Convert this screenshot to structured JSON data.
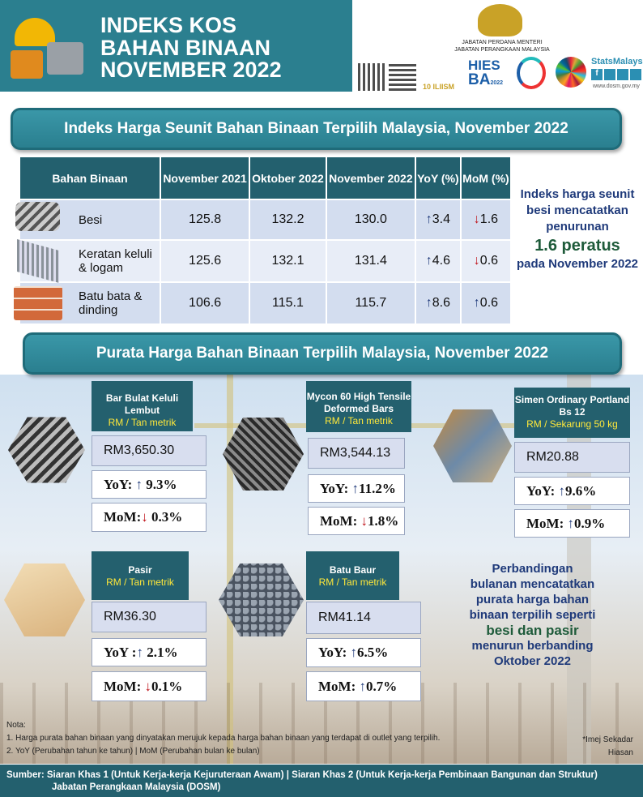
{
  "header": {
    "title_lines": [
      "INDEKS KOS",
      "BAHAN BINAAN",
      "NOVEMBER 2022"
    ]
  },
  "logos": {
    "agency_line1": "JABATAN PERDANA MENTERI",
    "agency_line2": "JABATAN PERANGKAAN MALAYSIA",
    "stats_brand": "StatsMalaysia",
    "website": "www.dosm.gov.my",
    "hies_top": "HIES",
    "hies_bottom": "BA",
    "hies_year": "2022",
    "anniv": "10 ILIISM"
  },
  "section1": {
    "title": "Indeks Harga Seunit Bahan Binaan Terpilih Malaysia, November 2022"
  },
  "index_table": {
    "headers": [
      "Bahan Binaan",
      "November 2021",
      "Oktober 2022",
      "November 2022",
      "YoY (%)",
      "MoM (%)"
    ],
    "rows": [
      {
        "name": "Besi",
        "nov2021": "125.8",
        "oct2022": "132.2",
        "nov2022": "130.0",
        "yoy": "3.4",
        "yoy_dir": "up",
        "mom": "1.6",
        "mom_dir": "down"
      },
      {
        "name": "Keratan keluli & logam",
        "nov2021": "125.6",
        "oct2022": "132.1",
        "nov2022": "131.4",
        "yoy": "4.6",
        "yoy_dir": "up",
        "mom": "0.6",
        "mom_dir": "down"
      },
      {
        "name": "Batu bata & dinding",
        "nov2021": "106.6",
        "oct2022": "115.1",
        "nov2022": "115.7",
        "yoy": "8.6",
        "yoy_dir": "up",
        "mom": "0.6",
        "mom_dir": "up"
      }
    ]
  },
  "side_note1": {
    "line1": "Indeks harga seunit",
    "line2": "besi mencatatkan",
    "line3": "penurunan",
    "highlight": "1.6 peratus",
    "line4": "pada November 2022"
  },
  "section2": {
    "title": "Purata Harga Bahan Binaan Terpilih Malaysia, November 2022"
  },
  "cards": [
    {
      "title": "Bar Bulat Keluli Lembut",
      "unit": "RM / Tan metrik",
      "price": "RM3,650.30",
      "yoy_label": "YoY:",
      "yoy": "9.3%",
      "yoy_dir": "up",
      "mom_label": "MoM:",
      "mom": "0.3%",
      "mom_dir": "down"
    },
    {
      "title": "Mycon 60 High Tensile Deformed Bars",
      "unit": "RM / Tan metrik",
      "price": "RM3,544.13",
      "yoy_label": "YoY:",
      "yoy": "11.2%",
      "yoy_dir": "up",
      "mom_label": "MoM:",
      "mom": "1.8%",
      "mom_dir": "down"
    },
    {
      "title": "Simen Ordinary Portland Bs 12",
      "unit": "RM / Sekarung 50 kg",
      "price": "RM20.88",
      "yoy_label": "YoY:",
      "yoy": "9.6%",
      "yoy_dir": "up",
      "mom_label": "MoM:",
      "mom": "0.9%",
      "mom_dir": "up"
    },
    {
      "title": "Pasir",
      "unit": "RM / Tan metrik",
      "price": "RM36.30",
      "yoy_label": "YoY :",
      "yoy": "2.1%",
      "yoy_dir": "up",
      "mom_label": "MoM:",
      "mom": "0.1%",
      "mom_dir": "down"
    },
    {
      "title": "Batu Baur",
      "unit": "RM / Tan metrik",
      "price": "RM41.14",
      "yoy_label": "YoY:",
      "yoy": "6.5%",
      "yoy_dir": "up",
      "mom_label": "MoM:",
      "mom": "0.7%",
      "mom_dir": "up"
    }
  ],
  "side_note2": {
    "line1": "Perbandingan",
    "line2": "bulanan mencatatkan",
    "line3": "purata harga bahan",
    "line4": "binaan terpilih seperti",
    "highlight1": "besi dan pasir",
    "line5": "menurun berbanding",
    "line6": "Oktober 2022"
  },
  "notes": {
    "heading": "Nota:",
    "items": [
      "1. Harga purata bahan binaan yang dinyatakan merujuk kepada harga bahan binaan yang terdapat di outlet yang terpilih.",
      "2. YoY (Perubahan tahun ke tahun) | MoM (Perubahan bulan ke bulan)"
    ],
    "disclaimer_line1": "*Imej Sekadar",
    "disclaimer_line2": "Hiasan"
  },
  "footer": {
    "line1": "Sumber:  Siaran Khas 1 (Untuk Kerja-kerja Kejuruteraan Awam) | Siaran Khas 2 (Untuk Kerja-kerja Pembinaan Bangunan dan Struktur)",
    "line2": "Jabatan Perangkaan Malaysia (DOSM)"
  },
  "colors": {
    "teal": "#2b7f8f",
    "dark_teal": "#23606e",
    "up_arrow": "#1f3a7a",
    "down_arrow": "#c0121a",
    "highlight_green": "#1e5b3a",
    "unit_yellow": "#ffe83a"
  }
}
